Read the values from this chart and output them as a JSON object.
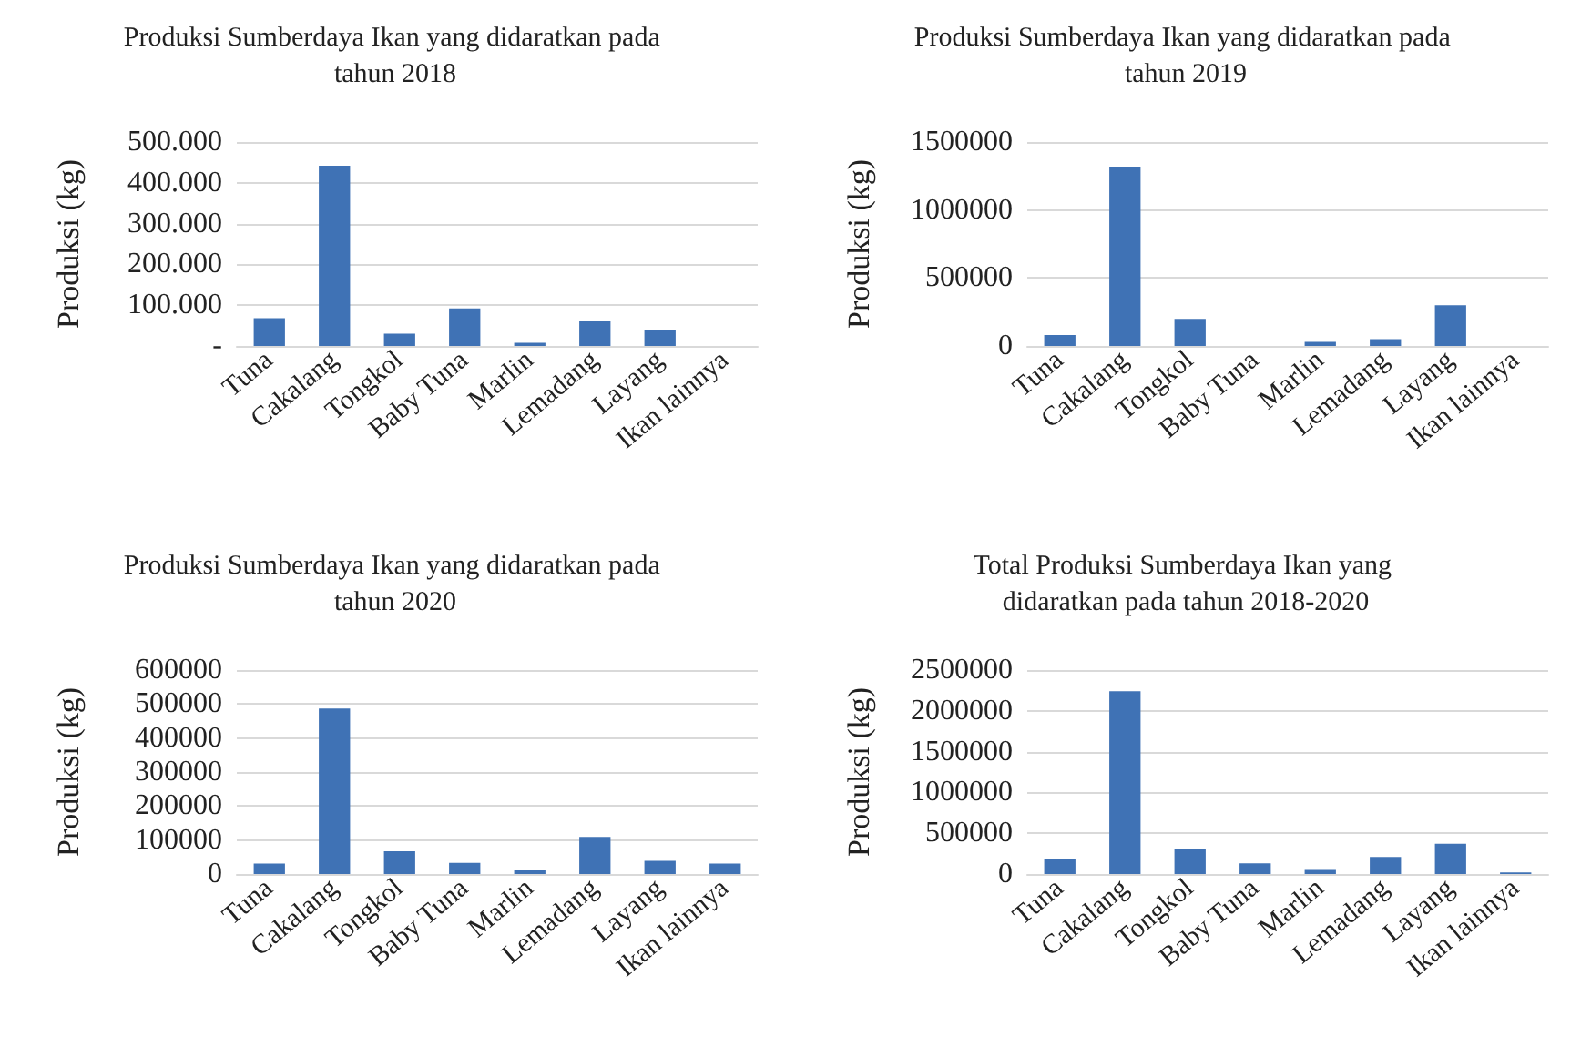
{
  "chart_data": [
    {
      "type": "bar",
      "title": "Produksi Sumberdaya Ikan yang didaratkan pada tahun 2018",
      "ylabel": "Produksi (kg)",
      "categories": [
        "Tuna",
        "Cakalang",
        "Tongkol",
        "Baby Tuna",
        "Marlin",
        "Lemadang",
        "Layang",
        "Ikan lainnya"
      ],
      "series": [
        {
          "color": "#3f72b5",
          "values": [
            68000,
            442000,
            30000,
            92000,
            8000,
            60000,
            38000,
            0
          ]
        }
      ],
      "ylim": [
        0,
        500000
      ],
      "yticks": [
        {
          "value": 0,
          "label": "-"
        },
        {
          "value": 100000,
          "label": "100.000"
        },
        {
          "value": 200000,
          "label": "200.000"
        },
        {
          "value": 300000,
          "label": "300.000"
        },
        {
          "value": 400000,
          "label": "400.000"
        },
        {
          "value": 500000,
          "label": "500.000"
        }
      ],
      "grid": "y"
    },
    {
      "type": "bar",
      "title": "Produksi Sumberdaya Ikan yang didaratkan pada tahun 2019",
      "ylabel": "Produksi (kg)",
      "categories": [
        "Tuna",
        "Cakalang",
        "Tongkol",
        "Baby Tuna",
        "Marlin",
        "Lemadang",
        "Layang",
        "Ikan lainnya"
      ],
      "series": [
        {
          "color": "#3f72b5",
          "values": [
            80000,
            1320000,
            200000,
            0,
            30000,
            50000,
            300000,
            null
          ]
        }
      ],
      "ylim": [
        0,
        1500000
      ],
      "yticks": [
        0,
        500000,
        1000000,
        1500000
      ],
      "grid": "y"
    },
    {
      "type": "bar",
      "title": "Produksi Sumberdaya Ikan yang didaratkan pada tahun 2020",
      "ylabel": "Produksi (kg)",
      "categories": [
        "Tuna",
        "Cakalang",
        "Tongkol",
        "Baby Tuna",
        "Marlin",
        "Lemadang",
        "Layang",
        "Ikan lainnya"
      ],
      "series": [
        {
          "color": "#3f72b5",
          "values": [
            31000,
            487000,
            67000,
            33000,
            11000,
            109000,
            39000,
            31000
          ]
        }
      ],
      "ylim": [
        0,
        600000
      ],
      "yticks": [
        0,
        100000,
        200000,
        300000,
        400000,
        500000,
        600000
      ],
      "grid": "y"
    },
    {
      "type": "bar",
      "title": "Total Produksi Sumberdaya Ikan yang didaratkan pada tahun 2018-2020",
      "ylabel": "Produksi (kg)",
      "categories": [
        "Tuna",
        "Cakalang",
        "Tongkol",
        "Baby Tuna",
        "Marlin",
        "Lemadang",
        "Layang",
        "Ikan lainnya"
      ],
      "series": [
        {
          "color": "#3f72b5",
          "values": [
            180000,
            2240000,
            300000,
            130000,
            50000,
            210000,
            370000,
            20000
          ]
        }
      ],
      "ylim": [
        0,
        2500000
      ],
      "yticks": [
        0,
        500000,
        1000000,
        1500000,
        2000000,
        2500000
      ],
      "grid": "y"
    }
  ]
}
